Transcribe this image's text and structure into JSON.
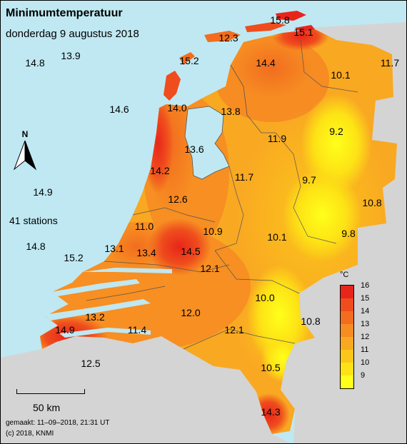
{
  "title": "Minimumtemperatuur",
  "subtitle": "donderdag 9 augustus 2018",
  "stations_label": "41 stations",
  "scale_label": "50 km",
  "north_label": "N",
  "footer": {
    "made": "gemaakt: 11–09–2018, 21:31 UT",
    "copyright": "(c) 2018, KNMI"
  },
  "legend": {
    "unit": "°C",
    "ticks": [
      "16",
      "15",
      "14",
      "13",
      "12",
      "11",
      "10",
      "9"
    ],
    "colors": [
      "#e8251b",
      "#ef4d1d",
      "#f26d1f",
      "#f68c22",
      "#f9a822",
      "#fbc61a",
      "#fde315",
      "#ffff1a"
    ]
  },
  "colors": {
    "sea": "#bfe8f2",
    "neighbour_land": "#d4d4d4"
  },
  "values": [
    {
      "id": "v-15-8",
      "label": "15.8"
    },
    {
      "id": "v-15-1",
      "label": "15.1"
    },
    {
      "id": "v-12-3",
      "label": "12.3"
    },
    {
      "id": "v-14-8-sea",
      "label": "14.8"
    },
    {
      "id": "v-13-9",
      "label": "13.9"
    },
    {
      "id": "v-15-2-vl",
      "label": "15.2"
    },
    {
      "id": "v-14-4",
      "label": "14.4"
    },
    {
      "id": "v-10-1-ne",
      "label": "10.1"
    },
    {
      "id": "v-11-7-e",
      "label": "11.7"
    },
    {
      "id": "v-14-6",
      "label": "14.6"
    },
    {
      "id": "v-14-0",
      "label": "14.0"
    },
    {
      "id": "v-13-8",
      "label": "13.8"
    },
    {
      "id": "v-9-2",
      "label": "9.2"
    },
    {
      "id": "v-11-9",
      "label": "11.9"
    },
    {
      "id": "v-13-6",
      "label": "13.6"
    },
    {
      "id": "v-14-2",
      "label": "14.2"
    },
    {
      "id": "v-11-7",
      "label": "11.7"
    },
    {
      "id": "v-9-7",
      "label": "9.7"
    },
    {
      "id": "v-14-9-sea",
      "label": "14.9"
    },
    {
      "id": "v-12-6",
      "label": "12.6"
    },
    {
      "id": "v-10-8-e",
      "label": "10.8"
    },
    {
      "id": "v-11-0",
      "label": "11.0"
    },
    {
      "id": "v-10-9",
      "label": "10.9"
    },
    {
      "id": "v-10-1",
      "label": "10.1"
    },
    {
      "id": "v-9-8",
      "label": "9.8"
    },
    {
      "id": "v-14-8",
      "label": "14.8"
    },
    {
      "id": "v-15-2",
      "label": "15.2"
    },
    {
      "id": "v-13-1",
      "label": "13.1"
    },
    {
      "id": "v-13-4",
      "label": "13.4"
    },
    {
      "id": "v-14-5",
      "label": "14.5"
    },
    {
      "id": "v-12-1-c",
      "label": "12.1"
    },
    {
      "id": "v-10-0",
      "label": "10.0"
    },
    {
      "id": "v-13-2",
      "label": "13.2"
    },
    {
      "id": "v-12-0",
      "label": "12.0"
    },
    {
      "id": "v-10-8",
      "label": "10.8"
    },
    {
      "id": "v-14-9",
      "label": "14.9"
    },
    {
      "id": "v-11-4",
      "label": "11.4"
    },
    {
      "id": "v-12-1",
      "label": "12.1"
    },
    {
      "id": "v-12-5",
      "label": "12.5"
    },
    {
      "id": "v-10-5",
      "label": "10.5"
    },
    {
      "id": "v-14-3",
      "label": "14.3"
    }
  ]
}
